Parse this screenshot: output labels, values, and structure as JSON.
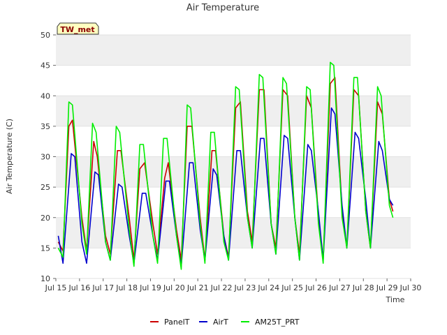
{
  "chart_data": {
    "type": "line",
    "title": "Air Temperature",
    "xlabel": "Time",
    "ylabel": "Air Temperature (C)",
    "badge": "TW_met",
    "ylim": [
      10,
      50
    ],
    "xlim": [
      "Jul 15",
      "Jul 30"
    ],
    "grid": "horizontal bands",
    "legend_position": "bottom",
    "x_ticks": [
      "Jul 15",
      "Jul 16",
      "Jul 17",
      "Jul 18",
      "Jul 19",
      "Jul 20",
      "Jul 21",
      "Jul 22",
      "Jul 23",
      "Jul 24",
      "Jul 25",
      "Jul 26",
      "Jul 27",
      "Jul 28",
      "Jul 29",
      "Jul 30"
    ],
    "y_ticks": [
      10,
      15,
      20,
      25,
      30,
      35,
      40,
      45,
      50
    ],
    "series": [
      {
        "name": "PanelT",
        "color": "#cc0000",
        "x": [
          15.1,
          15.3,
          15.55,
          15.7,
          16.1,
          16.3,
          16.6,
          16.75,
          17.1,
          17.3,
          17.6,
          17.75,
          18.1,
          18.3,
          18.55,
          18.75,
          19.1,
          19.3,
          19.6,
          19.75,
          20.1,
          20.3,
          20.55,
          20.75,
          21.1,
          21.3,
          21.6,
          21.75,
          22.1,
          22.3,
          22.6,
          22.8,
          23.1,
          23.3,
          23.6,
          23.8,
          24.1,
          24.3,
          24.6,
          24.8,
          25.1,
          25.3,
          25.6,
          25.8,
          26.1,
          26.3,
          26.6,
          26.8,
          27.1,
          27.3,
          27.6,
          27.8,
          28.1,
          28.3,
          28.6,
          28.8,
          29.1,
          29.25
        ],
        "y": [
          16,
          14.5,
          35,
          36,
          20,
          14.5,
          32.5,
          30,
          17,
          14,
          31,
          31,
          20,
          13,
          28,
          29,
          19,
          14,
          26.5,
          29,
          18,
          13,
          35,
          35,
          20,
          13,
          31,
          31,
          17,
          13.5,
          38,
          39,
          21,
          16,
          41,
          41,
          19,
          15,
          41,
          40,
          20,
          14,
          40,
          38,
          20,
          13,
          42,
          43,
          21,
          15,
          41,
          40,
          21,
          15,
          39,
          37,
          23,
          21
        ]
      },
      {
        "name": "AirT",
        "color": "#0000cc",
        "x": [
          15.1,
          15.3,
          15.65,
          15.8,
          16.1,
          16.3,
          16.65,
          16.8,
          17.1,
          17.3,
          17.65,
          17.8,
          18.1,
          18.3,
          18.65,
          18.8,
          19.1,
          19.3,
          19.65,
          19.8,
          20.1,
          20.3,
          20.65,
          20.8,
          21.1,
          21.3,
          21.65,
          21.8,
          22.1,
          22.3,
          22.65,
          22.8,
          23.1,
          23.3,
          23.65,
          23.8,
          24.1,
          24.3,
          24.65,
          24.8,
          25.1,
          25.3,
          25.65,
          25.8,
          26.1,
          26.3,
          26.65,
          26.8,
          27.1,
          27.3,
          27.65,
          27.8,
          28.1,
          28.3,
          28.65,
          28.8,
          29.1,
          29.25
        ],
        "y": [
          17,
          12.5,
          30.5,
          30,
          16,
          12.5,
          27.5,
          27,
          16,
          13,
          25.5,
          25,
          17,
          12.5,
          24,
          24,
          17,
          13,
          26,
          26,
          17,
          12,
          29,
          29,
          18,
          13,
          28,
          27,
          17,
          13,
          31,
          31,
          20,
          15,
          33,
          33,
          19,
          14,
          33.5,
          33,
          20,
          13,
          32,
          31,
          21,
          13,
          38,
          37,
          22,
          15,
          34,
          33,
          23,
          15,
          32.5,
          31,
          23,
          22
        ]
      },
      {
        "name": "AM25T_PRT",
        "color": "#00ee00",
        "x": [
          15.1,
          15.3,
          15.55,
          15.7,
          16.1,
          16.3,
          16.55,
          16.7,
          17.1,
          17.3,
          17.55,
          17.7,
          18.1,
          18.3,
          18.55,
          18.7,
          19.1,
          19.3,
          19.55,
          19.7,
          20.1,
          20.3,
          20.55,
          20.7,
          21.1,
          21.3,
          21.55,
          21.7,
          22.1,
          22.3,
          22.6,
          22.75,
          23.1,
          23.3,
          23.6,
          23.75,
          24.1,
          24.3,
          24.6,
          24.75,
          25.1,
          25.3,
          25.6,
          25.75,
          26.1,
          26.3,
          26.6,
          26.75,
          27.1,
          27.3,
          27.6,
          27.75,
          28.1,
          28.3,
          28.6,
          28.75,
          29.1,
          29.25
        ],
        "y": [
          15,
          13.5,
          39,
          38.5,
          19,
          14,
          35.5,
          34,
          16,
          13,
          35,
          34,
          18,
          12,
          32,
          32,
          17,
          12.5,
          33,
          33,
          17,
          11.5,
          38.5,
          38,
          19,
          12.5,
          34,
          34,
          16,
          13,
          41.5,
          41,
          20,
          15,
          43.5,
          43,
          19,
          14,
          43,
          42,
          20,
          13,
          41.5,
          41,
          19,
          12.5,
          45.5,
          45,
          20,
          15,
          43,
          43,
          21,
          15,
          41.5,
          40,
          22,
          20
        ]
      }
    ]
  }
}
